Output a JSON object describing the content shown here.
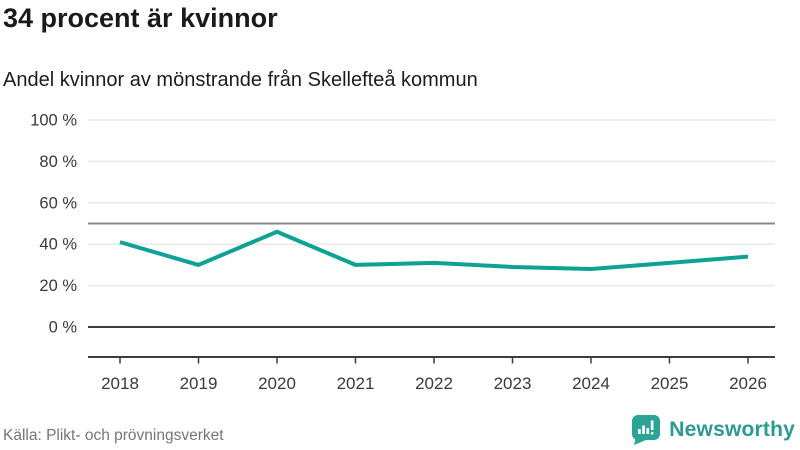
{
  "header": {
    "title": "34 procent är kvinnor",
    "subtitle": "Andel kvinnor av mönstrande från Skellefteå kommun"
  },
  "chart_data": {
    "type": "line",
    "title": "34 procent är kvinnor",
    "subtitle": "Andel kvinnor av mönstrande från Skellefteå kommun",
    "categories": [
      "2018",
      "2019",
      "2020",
      "2021",
      "2022",
      "2023",
      "2024",
      "2025",
      "2026"
    ],
    "values": [
      41,
      30,
      46,
      30,
      31,
      29,
      28,
      31,
      34
    ],
    "unit": "%",
    "xlabel": "",
    "ylabel": "",
    "ylim": [
      0,
      100
    ],
    "y_ticks": [
      0,
      20,
      40,
      60,
      80,
      100
    ],
    "y_tick_suffix": " %",
    "reference_line_y": 50,
    "grid": true,
    "legend": "none",
    "line_color": "#0da294"
  },
  "footer": {
    "source": "Källa: Plikt- och prövningsverket",
    "brand": "Newsworthy"
  },
  "colors": {
    "accent_teal": "#0da294",
    "brand_teal": "#2ba396",
    "brand_text_teal": "#2a9a94",
    "grid_light": "#e8e8e8",
    "reference_line": "#8a8a8a",
    "axis_dark": "#3d3d3d",
    "tick_text": "#3a3a3a",
    "text_dark": "#1a1a1a",
    "text_muted": "#757575"
  }
}
